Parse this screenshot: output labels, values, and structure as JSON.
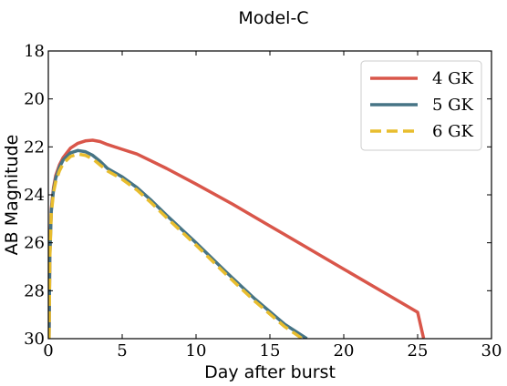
{
  "chart_data": {
    "type": "line",
    "title": "Model-C",
    "xlabel": "Day after burst",
    "ylabel": "AB Magnitude",
    "xlim": [
      0,
      30
    ],
    "ylim": [
      30,
      18
    ],
    "y_inverted": true,
    "xticks": [
      0,
      5,
      10,
      15,
      20,
      25,
      30
    ],
    "xtick_labels": [
      "0",
      "5",
      "10",
      "15",
      "20",
      "25",
      "30"
    ],
    "yticks": [
      18,
      20,
      22,
      24,
      26,
      28,
      30
    ],
    "ytick_labels": [
      "18",
      "20",
      "22",
      "24",
      "26",
      "28",
      "30"
    ],
    "grid": false,
    "legend_position": "top-right",
    "series": [
      {
        "name": "4 GK",
        "color": "#d9564a",
        "style": "solid",
        "x": [
          0.05,
          0.1,
          0.2,
          0.35,
          0.5,
          0.75,
          1.0,
          1.5,
          2.0,
          2.5,
          3.0,
          3.5,
          4.0,
          5.0,
          6.0,
          7.0,
          8.0,
          10.0,
          12.5,
          15.0,
          17.5,
          20.0,
          22.5,
          25.0,
          25.4
        ],
        "y": [
          30.0,
          26.5,
          24.6,
          23.7,
          23.2,
          22.75,
          22.45,
          22.05,
          21.85,
          21.75,
          21.72,
          21.78,
          21.9,
          22.1,
          22.3,
          22.6,
          22.9,
          23.55,
          24.4,
          25.3,
          26.2,
          27.1,
          28.0,
          28.9,
          29.98
        ]
      },
      {
        "name": "5 GK",
        "color": "#467485",
        "style": "solid",
        "x": [
          0.05,
          0.1,
          0.2,
          0.35,
          0.5,
          0.75,
          1.0,
          1.5,
          2.0,
          2.5,
          3.0,
          3.5,
          4.0,
          5.0,
          6.0,
          7.0,
          8.0,
          10.0,
          12.0,
          14.0,
          16.0,
          17.5
        ],
        "y": [
          30.0,
          26.6,
          24.7,
          23.8,
          23.3,
          22.85,
          22.55,
          22.25,
          22.15,
          22.2,
          22.35,
          22.6,
          22.9,
          23.25,
          23.7,
          24.25,
          24.85,
          26.0,
          27.2,
          28.35,
          29.4,
          30.0
        ]
      },
      {
        "name": "6 GK",
        "color": "#e8bd2e",
        "style": "dashed",
        "x": [
          0.05,
          0.1,
          0.2,
          0.35,
          0.5,
          0.75,
          1.0,
          1.5,
          2.0,
          2.5,
          3.0,
          3.5,
          4.0,
          5.0,
          6.0,
          7.0,
          8.0,
          10.0,
          12.0,
          14.0,
          16.0,
          17.2
        ],
        "y": [
          30.0,
          26.7,
          24.8,
          23.9,
          23.45,
          23.0,
          22.7,
          22.4,
          22.3,
          22.35,
          22.5,
          22.75,
          23.0,
          23.35,
          23.8,
          24.35,
          24.95,
          26.1,
          27.3,
          28.45,
          29.5,
          30.0
        ]
      }
    ]
  }
}
